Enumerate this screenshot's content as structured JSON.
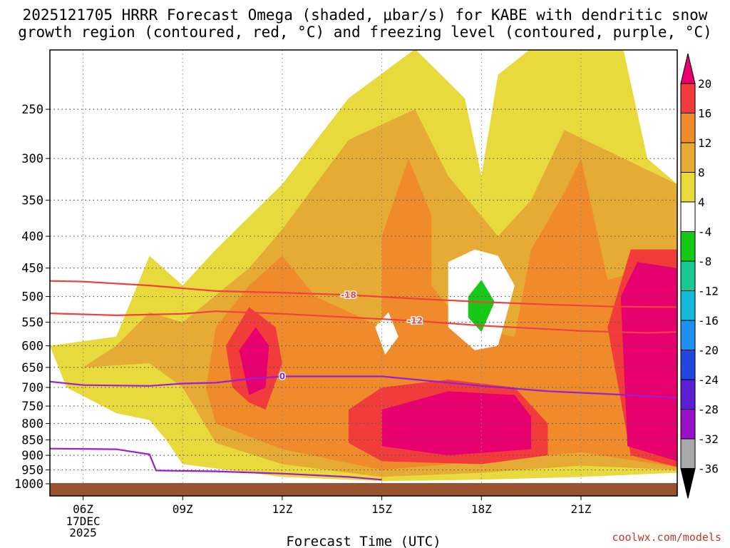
{
  "title_line1": "2025121705 HRRR Forecast Omega (shaded, μbar/s) for KABE with dendritic snow",
  "title_line2": "growth region (contoured, red, °C) and freezing level (contoured, purple, °C)",
  "credit": "coolwx.com/models",
  "chart_data": {
    "type": "contour_timeheight",
    "title": "2025121705 HRRR Forecast Omega (shaded, μbar/s) for KABE with dendritic snow growth region (contoured, red, °C) and freezing level (contoured, purple, °C)",
    "xlabel": "Forecast Time (UTC)",
    "ylabel": "",
    "x_range_hours_utc": [
      5,
      23.9
    ],
    "y_range_hPa": [
      1000,
      200
    ],
    "y_ticks": [
      "250",
      "300",
      "350",
      "400",
      "450",
      "500",
      "550",
      "600",
      "650",
      "700",
      "750",
      "800",
      "850",
      "900",
      "950",
      "1000"
    ],
    "x_ticks": [
      {
        "label": "06Z",
        "hour": 6,
        "sub": [
          "17DEC",
          "2025"
        ]
      },
      {
        "label": "09Z",
        "hour": 9
      },
      {
        "label": "12Z",
        "hour": 12
      },
      {
        "label": "15Z",
        "hour": 15
      },
      {
        "label": "18Z",
        "hour": 18
      },
      {
        "label": "21Z",
        "hour": 21
      }
    ],
    "colorbar": {
      "labels": [
        "20",
        "16",
        "12",
        "8",
        "4",
        "-4",
        "-8",
        "-12",
        "-16",
        "-20",
        "-24",
        "-28",
        "-32",
        "-36"
      ],
      "colors": [
        "#e8006e",
        "#f23c3c",
        "#ef8b2b",
        "#e6ab35",
        "#e8d93c",
        "#ffffff",
        "#17c917",
        "#16c995",
        "#16b8d9",
        "#1f8ff0",
        "#2346e0",
        "#5a1fd0",
        "#9a10c8",
        "#a8a8a8",
        "#000000"
      ]
    },
    "contours": [
      {
        "name": "dendritic -18C",
        "value": -18,
        "label": "-18",
        "color": "#f04040",
        "points": [
          [
            5,
            472
          ],
          [
            6,
            473
          ],
          [
            8,
            480
          ],
          [
            10,
            490
          ],
          [
            12,
            493
          ],
          [
            14,
            497
          ],
          [
            16,
            504
          ],
          [
            18,
            510
          ],
          [
            20,
            515
          ],
          [
            22,
            519
          ],
          [
            23.9,
            520
          ]
        ]
      },
      {
        "name": "dendritic -12C",
        "value": -12,
        "label": "-12",
        "color": "#f04040",
        "points": [
          [
            5,
            532
          ],
          [
            7,
            536
          ],
          [
            9,
            533
          ],
          [
            10,
            528
          ],
          [
            12,
            533
          ],
          [
            14,
            540
          ],
          [
            16,
            547
          ],
          [
            18,
            557
          ],
          [
            20,
            564
          ],
          [
            21,
            568
          ],
          [
            23,
            572
          ],
          [
            23.9,
            570
          ]
        ]
      },
      {
        "name": "freezing level",
        "value": 0,
        "label": "0",
        "color": "#9a1fd0",
        "points": [
          [
            5,
            685
          ],
          [
            6,
            694
          ],
          [
            8,
            696
          ],
          [
            9,
            690
          ],
          [
            10,
            688
          ],
          [
            11,
            678
          ],
          [
            12,
            672
          ],
          [
            15,
            672
          ],
          [
            17,
            688
          ],
          [
            18,
            696
          ],
          [
            20,
            710
          ],
          [
            22,
            718
          ],
          [
            23.9,
            727
          ]
        ]
      },
      {
        "name": "surface freezing level",
        "value": 0,
        "label": "",
        "color": "#9a1fd0",
        "points": [
          [
            5,
            878
          ],
          [
            7,
            880
          ],
          [
            8,
            897
          ],
          [
            8.2,
            952
          ],
          [
            10,
            955
          ],
          [
            12,
            963
          ],
          [
            14,
            975
          ],
          [
            15,
            985
          ]
        ]
      }
    ],
    "omega_regions_ubar_s": [
      {
        "level": "4-8",
        "color": "#e8d93c",
        "points": [
          [
            7,
            580
          ],
          [
            8,
            430
          ],
          [
            9,
            480
          ],
          [
            10,
            420
          ],
          [
            12,
            330
          ],
          [
            14,
            240
          ],
          [
            16,
            200
          ],
          [
            17.5,
            240
          ],
          [
            18,
            320
          ],
          [
            18.5,
            220
          ],
          [
            20,
            190
          ],
          [
            21.5,
            130
          ],
          [
            23,
            300
          ],
          [
            23.9,
            330
          ],
          [
            23.9,
            960
          ],
          [
            21,
            975
          ],
          [
            18,
            985
          ],
          [
            15,
            990
          ],
          [
            12,
            975
          ],
          [
            9,
            930
          ],
          [
            8.5,
            850
          ],
          [
            8,
            790
          ],
          [
            7,
            770
          ],
          [
            5.5,
            700
          ],
          [
            5,
            600
          ]
        ]
      },
      {
        "level": "8-12",
        "color": "#e6ab35",
        "points": [
          [
            6,
            650
          ],
          [
            7,
            600
          ],
          [
            8,
            530
          ],
          [
            9,
            550
          ],
          [
            11,
            450
          ],
          [
            12,
            390
          ],
          [
            14,
            280
          ],
          [
            16,
            250
          ],
          [
            17,
            320
          ],
          [
            18.5,
            400
          ],
          [
            19.5,
            350
          ],
          [
            20.5,
            270
          ],
          [
            23.9,
            330
          ],
          [
            23.9,
            950
          ],
          [
            21,
            935
          ],
          [
            18,
            960
          ],
          [
            15,
            975
          ],
          [
            12,
            930
          ],
          [
            10,
            860
          ],
          [
            9,
            700
          ],
          [
            8,
            640
          ]
        ]
      },
      {
        "level": "12-16",
        "color": "#ef8b2b",
        "points": [
          [
            10,
            560
          ],
          [
            11,
            480
          ],
          [
            12,
            430
          ],
          [
            13,
            500
          ],
          [
            15,
            560
          ],
          [
            15,
            400
          ],
          [
            15.8,
            300
          ],
          [
            16.5,
            370
          ],
          [
            16.5,
            480
          ],
          [
            17.5,
            560
          ],
          [
            19,
            580
          ],
          [
            19.5,
            420
          ],
          [
            20.5,
            340
          ],
          [
            21,
            300
          ],
          [
            21.8,
            470
          ],
          [
            23.9,
            440
          ],
          [
            23.9,
            940
          ],
          [
            21,
            890
          ],
          [
            18,
            920
          ],
          [
            15,
            950
          ],
          [
            12,
            880
          ],
          [
            10,
            800
          ],
          [
            9.7,
            700
          ]
        ]
      },
      {
        "level": "16-20",
        "color": "#f23c3c",
        "points": [
          [
            10.3,
            600
          ],
          [
            11,
            520
          ],
          [
            11.8,
            560
          ],
          [
            12,
            640
          ],
          [
            11.5,
            760
          ],
          [
            11,
            740
          ],
          [
            10.5,
            700
          ]
        ]
      },
      {
        "level": "16-20",
        "color": "#f23c3c",
        "points": [
          [
            14,
            760
          ],
          [
            15,
            700
          ],
          [
            17,
            680
          ],
          [
            19,
            700
          ],
          [
            20,
            800
          ],
          [
            20,
            900
          ],
          [
            18,
            930
          ],
          [
            15,
            920
          ],
          [
            14,
            860
          ]
        ]
      },
      {
        "level": "16-20",
        "color": "#f23c3c",
        "points": [
          [
            21.8,
            560
          ],
          [
            22.5,
            420
          ],
          [
            23.9,
            420
          ],
          [
            23.9,
            940
          ],
          [
            22.5,
            900
          ]
        ]
      },
      {
        "level": ">20",
        "color": "#e8006e",
        "points": [
          [
            10.7,
            610
          ],
          [
            11.2,
            560
          ],
          [
            11.6,
            600
          ],
          [
            11.5,
            700
          ],
          [
            11,
            720
          ]
        ]
      },
      {
        "level": ">20",
        "color": "#e8006e",
        "points": [
          [
            15,
            760
          ],
          [
            17,
            710
          ],
          [
            19,
            720
          ],
          [
            19.5,
            780
          ],
          [
            19.5,
            880
          ],
          [
            17,
            900
          ],
          [
            15,
            870
          ]
        ]
      },
      {
        "level": ">20",
        "color": "#e8006e",
        "points": [
          [
            22.2,
            500
          ],
          [
            22.7,
            440
          ],
          [
            23.9,
            450
          ],
          [
            23.9,
            920
          ],
          [
            22.4,
            870
          ]
        ]
      },
      {
        "level": "-4 to 4",
        "color": "#ffffff",
        "points": [
          [
            17,
            440
          ],
          [
            17.8,
            420
          ],
          [
            18.5,
            430
          ],
          [
            19,
            480
          ],
          [
            18.5,
            600
          ],
          [
            17.8,
            610
          ],
          [
            17,
            560
          ]
        ]
      },
      {
        "level": "-4 to 4",
        "color": "#ffffff",
        "points": [
          [
            14.8,
            560
          ],
          [
            15.2,
            530
          ],
          [
            15.5,
            580
          ],
          [
            15.1,
            620
          ]
        ]
      },
      {
        "level": "-8 to -4",
        "color": "#17c917",
        "points": [
          [
            17.6,
            500
          ],
          [
            18,
            470
          ],
          [
            18.4,
            510
          ],
          [
            18,
            570
          ],
          [
            17.6,
            540
          ]
        ]
      }
    ]
  }
}
